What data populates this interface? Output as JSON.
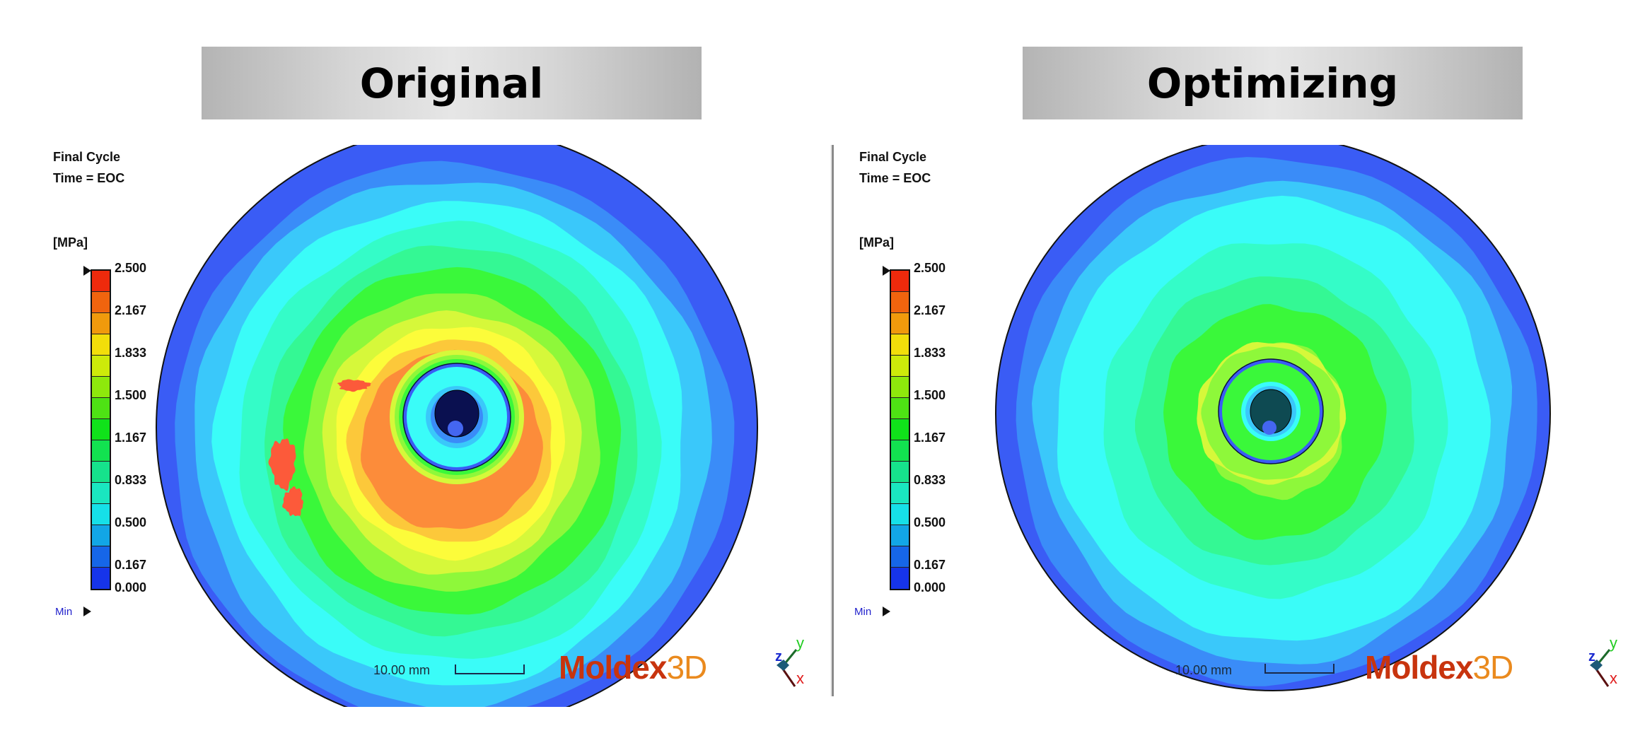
{
  "banners": {
    "left": "Original",
    "right": "Optimizing"
  },
  "panels": [
    {
      "id": "original",
      "info_line1": "Final Cycle",
      "info_line2": "Time = EOC",
      "unit": "[MPa]",
      "min_label": "Min",
      "scale_text": "10.00 mm",
      "logo_main": "Moldex",
      "logo_suffix": "3D",
      "triad": {
        "x": "x",
        "y": "y",
        "z": "z"
      }
    },
    {
      "id": "optimizing",
      "info_line1": "Final Cycle",
      "info_line2": "Time = EOC",
      "unit": "[MPa]",
      "min_label": "Min",
      "scale_text": "10.00 mm",
      "logo_main": "Moldex",
      "logo_suffix": "3D",
      "triad": {
        "x": "x",
        "y": "y",
        "z": "z"
      }
    }
  ],
  "colorbar": {
    "unit": "MPa",
    "min": 0.0,
    "max": 2.5,
    "tick_labels": [
      "2.500",
      "2.167",
      "1.833",
      "1.500",
      "1.167",
      "0.833",
      "0.500",
      "0.167",
      "0.000"
    ],
    "colors_top_to_bottom": [
      "#ee2a0c",
      "#f0640e",
      "#f09a0c",
      "#f2de0a",
      "#cdea0a",
      "#8ee80c",
      "#4ee214",
      "#10e21a",
      "#12e250",
      "#16e28c",
      "#1ae6c0",
      "#16e0e8",
      "#12a6e6",
      "#1666e8",
      "#1634ea"
    ]
  },
  "field_colors": {
    "band_0": "#3a5cf5",
    "band_1": "#3a8cf8",
    "band_2": "#3ac8fa",
    "band_3": "#3afcf8",
    "band_4": "#34fcc8",
    "band_5": "#34f894",
    "band_6": "#3af83a",
    "band_7": "#8ef83a",
    "band_8": "#d6f83a",
    "band_9": "#fcfc3a",
    "band_10": "#fcc83a",
    "band_11": "#fc8c3a",
    "band_12": "#fc5a3a",
    "hub_dark": "#0a1050",
    "hub_dark_opt": "#0e4a52",
    "gate": "#4466f0"
  }
}
